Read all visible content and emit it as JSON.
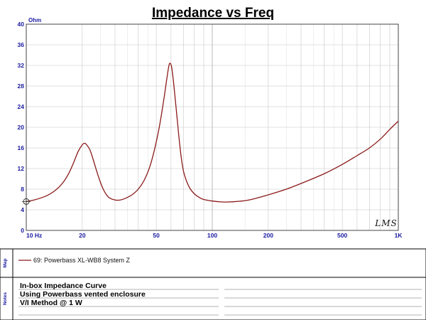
{
  "chart_data": {
    "type": "line",
    "title": "Impedance vs Freq",
    "ylabel": "Ohm",
    "xscale": "log",
    "xlim": [
      10,
      1000
    ],
    "ylim": [
      0,
      40
    ],
    "yticks": [
      0,
      4,
      8,
      12,
      16,
      20,
      24,
      28,
      32,
      36,
      40
    ],
    "xtick_labels": [
      {
        "value": 10,
        "label": "10 Hz"
      },
      {
        "value": 20,
        "label": "20"
      },
      {
        "value": 50,
        "label": "50"
      },
      {
        "value": 100,
        "label": "100"
      },
      {
        "value": 200,
        "label": "200"
      },
      {
        "value": 500,
        "label": "500"
      },
      {
        "value": 1000,
        "label": "1K"
      }
    ],
    "grid": true,
    "series": [
      {
        "name": "69: Powerbass XL-WB8 System Z",
        "color": "#8b1a1a",
        "points": [
          [
            10,
            5.6
          ],
          [
            11,
            5.9
          ],
          [
            12,
            6.3
          ],
          [
            13,
            6.8
          ],
          [
            14,
            7.5
          ],
          [
            15,
            8.4
          ],
          [
            16,
            9.6
          ],
          [
            17,
            11.2
          ],
          [
            18,
            13.2
          ],
          [
            19,
            15.3
          ],
          [
            20,
            16.6
          ],
          [
            20.5,
            16.9
          ],
          [
            21,
            16.7
          ],
          [
            22,
            15.6
          ],
          [
            23,
            13.5
          ],
          [
            24,
            11.3
          ],
          [
            25,
            9.4
          ],
          [
            26,
            7.9
          ],
          [
            27,
            6.9
          ],
          [
            28,
            6.3
          ],
          [
            30,
            5.9
          ],
          [
            32,
            5.9
          ],
          [
            34,
            6.2
          ],
          [
            37,
            6.9
          ],
          [
            40,
            8.0
          ],
          [
            43,
            9.7
          ],
          [
            46,
            12.2
          ],
          [
            49,
            15.8
          ],
          [
            52,
            20.2
          ],
          [
            55,
            25.6
          ],
          [
            57,
            29.5
          ],
          [
            58.5,
            32.0
          ],
          [
            59.5,
            32.4
          ],
          [
            60.5,
            31.6
          ],
          [
            62,
            28.5
          ],
          [
            64,
            23.5
          ],
          [
            66,
            18.5
          ],
          [
            68,
            14.3
          ],
          [
            70,
            11.5
          ],
          [
            73,
            9.4
          ],
          [
            76,
            8.1
          ],
          [
            80,
            7.1
          ],
          [
            85,
            6.4
          ],
          [
            90,
            6.0
          ],
          [
            100,
            5.7
          ],
          [
            110,
            5.55
          ],
          [
            120,
            5.5
          ],
          [
            140,
            5.65
          ],
          [
            160,
            5.95
          ],
          [
            200,
            6.9
          ],
          [
            250,
            8.0
          ],
          [
            300,
            9.1
          ],
          [
            400,
            11.0
          ],
          [
            500,
            12.8
          ],
          [
            600,
            14.5
          ],
          [
            700,
            16.0
          ],
          [
            800,
            17.7
          ],
          [
            900,
            19.6
          ],
          [
            1000,
            21.2
          ]
        ]
      }
    ]
  },
  "logo_text": "LMS",
  "legend": {
    "section_label": "Map",
    "entry": "69: Powerbass XL-WB8 System Z"
  },
  "notes": {
    "section_label": "Notes",
    "lines": [
      "In-box Impedance Curve",
      "Using Powerbass vented enclosure",
      "V/I Method @ 1 W"
    ]
  }
}
